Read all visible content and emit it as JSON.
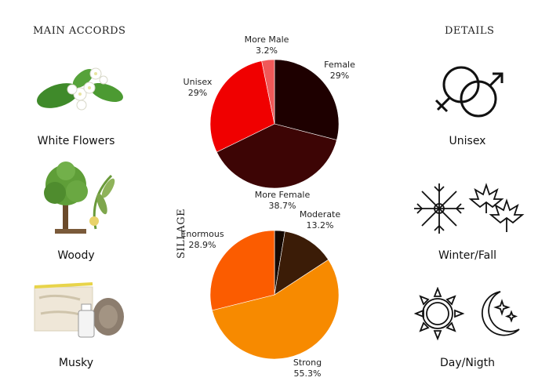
{
  "left_panel": {
    "heading": "MAIN ACCORDS",
    "accords": [
      {
        "label": "White Flowers",
        "icon": "white-flowers-icon"
      },
      {
        "label": "Woody",
        "icon": "tree-icon"
      },
      {
        "label": "Musky",
        "icon": "musk-icon"
      }
    ]
  },
  "right_panel": {
    "heading": "DETAILS",
    "details": [
      {
        "label": "Unisex",
        "icon": "gender-symbols-icon"
      },
      {
        "label": "Winter/Fall",
        "icon": "snowflake-maple-leaf-icon"
      },
      {
        "label": "Day/Nigth",
        "icon": "sun-moon-icon"
      }
    ]
  },
  "sillage_label": "SILLAGE",
  "chart_data": [
    {
      "type": "pie",
      "title": "",
      "slices": [
        {
          "label": "Female",
          "value": 29,
          "display": "29%",
          "color": "#1e0000"
        },
        {
          "label": "More Female",
          "value": 38.7,
          "display": "38.7%",
          "color": "#3d0505"
        },
        {
          "label": "Unisex",
          "value": 29,
          "display": "29%",
          "color": "#f00000"
        },
        {
          "label": "More Male",
          "value": 3.2,
          "display": "3.2%",
          "color": "#f05858"
        }
      ]
    },
    {
      "type": "pie",
      "title": "",
      "slices": [
        {
          "label": "",
          "value": 2.6,
          "display": "",
          "color": "#140800"
        },
        {
          "label": "Moderate",
          "value": 13.2,
          "display": "13.2%",
          "color": "#3b1c07"
        },
        {
          "label": "Strong",
          "value": 55.3,
          "display": "55.3%",
          "color": "#f78a00"
        },
        {
          "label": "Enormous",
          "value": 28.9,
          "display": "28.9%",
          "color": "#fb5c00"
        }
      ]
    }
  ]
}
